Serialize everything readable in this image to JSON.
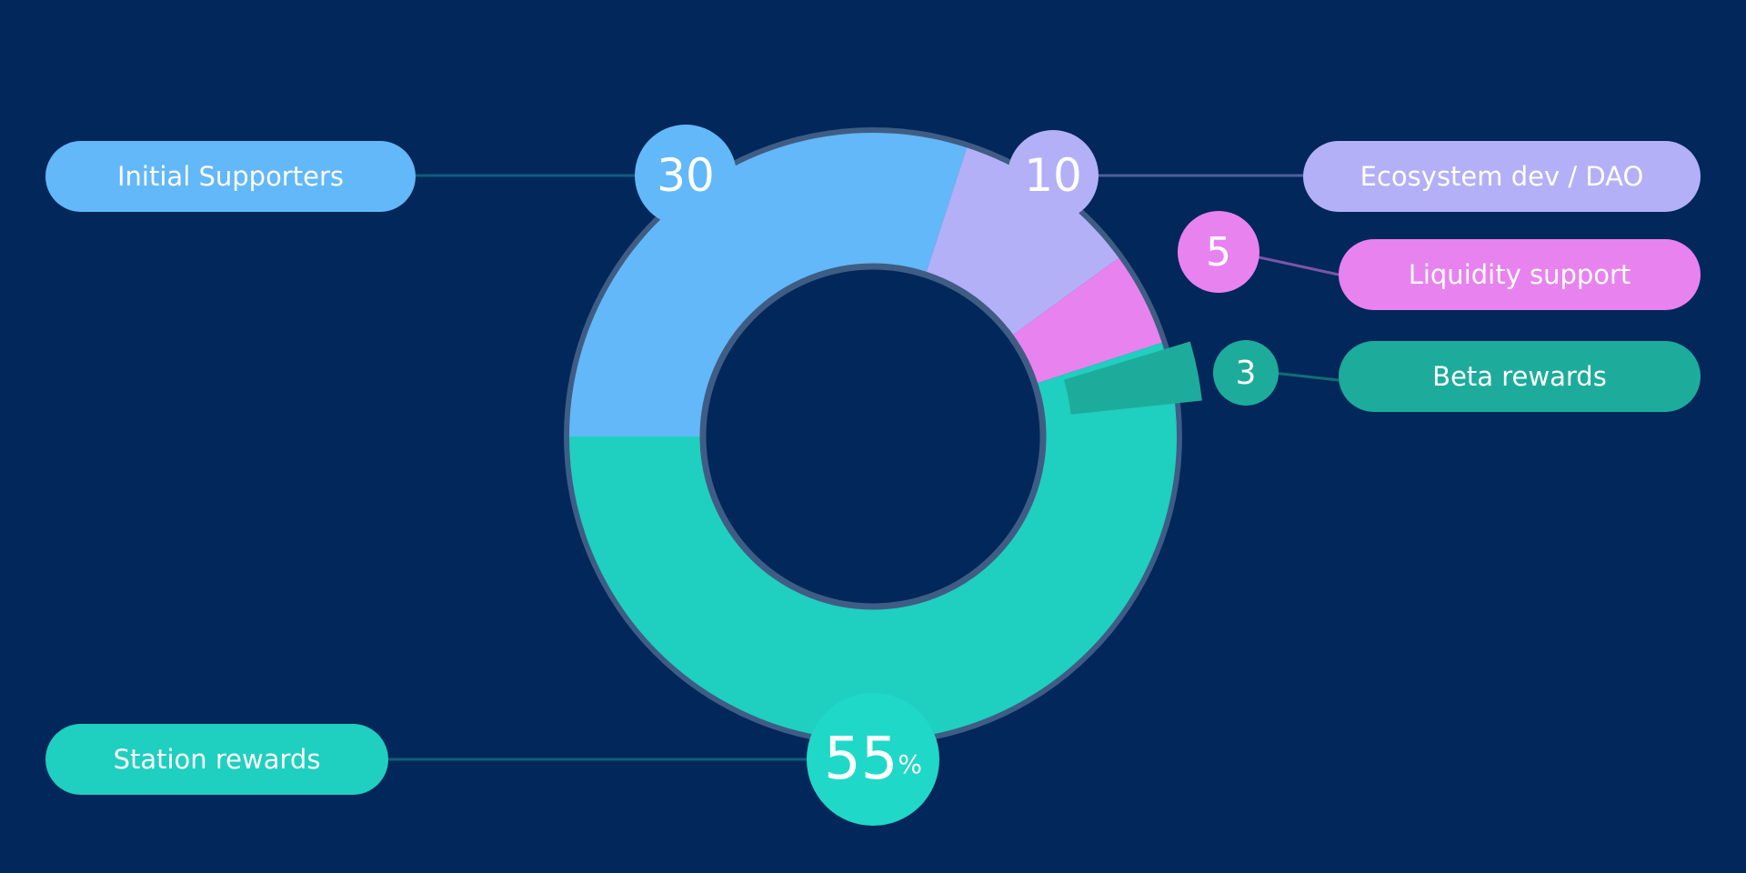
{
  "chart_data": {
    "type": "pie",
    "variant": "donut",
    "start_angle": "9 o'clock, clockwise",
    "unit": "%",
    "slices": [
      {
        "label": "Initial Supporters",
        "value": 30,
        "value_label": "30",
        "color": "#62b8f8"
      },
      {
        "label": "Ecosystem dev / DAO",
        "value": 10,
        "value_label": "10",
        "color": "#b3b0f7"
      },
      {
        "label": "Liquidity support",
        "value": 5,
        "value_label": "5",
        "color": "#e882ef"
      },
      {
        "label": "Beta rewards",
        "value": 3,
        "value_label": "3",
        "color": "#1dac9b",
        "exploded": true
      },
      {
        "label": "Station rewards",
        "value": 55,
        "value_label": "55",
        "color": "#1fcfbf"
      }
    ],
    "legend_placement": "around chart, callout labels"
  },
  "colors": {
    "background": "#02275a",
    "ring_border": "#3f5d84"
  }
}
